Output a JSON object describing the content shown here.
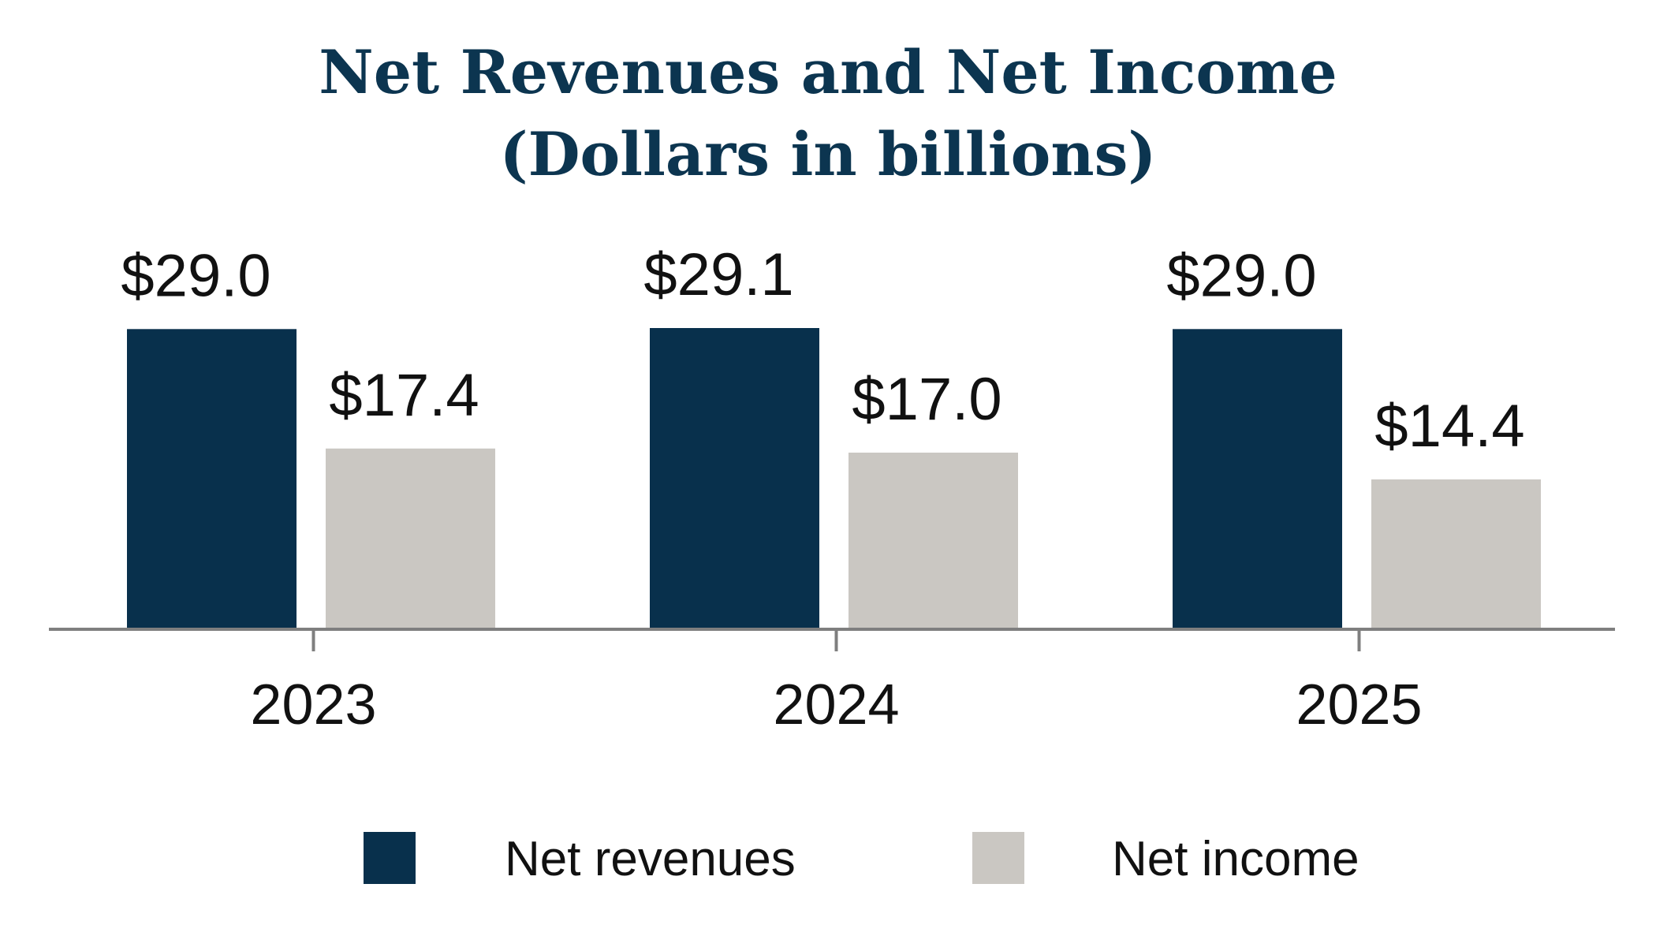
{
  "chart_data": {
    "type": "bar",
    "title": "Net Revenues and Net Income",
    "subtitle": "(Dollars in billions)",
    "categories": [
      "2023",
      "2024",
      "2025"
    ],
    "series": [
      {
        "name": "Net revenues",
        "color": "#08304c",
        "values": [
          29.0,
          29.1,
          29.0
        ],
        "labels": [
          "$29.0",
          "$29.1",
          "$29.0"
        ]
      },
      {
        "name": "Net income",
        "color": "#cac7c2",
        "values": [
          17.4,
          17.0,
          14.4
        ],
        "labels": [
          "$17.4",
          "$17.0",
          "$14.4"
        ]
      }
    ],
    "ylim": [
      0,
      29.1
    ],
    "grid": false,
    "legend_position": "bottom"
  },
  "colors": {
    "title": "#0c3550",
    "axis": "#7f7f7f"
  }
}
